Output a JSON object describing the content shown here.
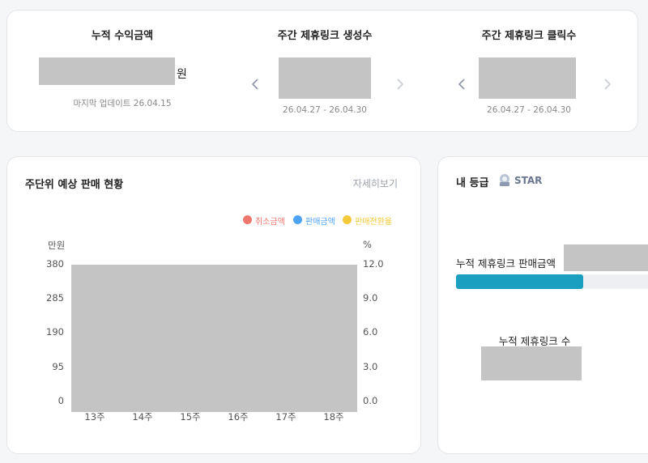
{
  "summary": [
    {
      "title": "누적 수익금액",
      "unit": "원",
      "note": "마지막 업데이트 26.04.15"
    },
    {
      "title": "주간 제휴링크 생성수",
      "period": "26.04.27 - 26.04.30"
    },
    {
      "title": "주간 제휴링크 클릭수",
      "period": "26.04.27 - 26.04.30"
    }
  ],
  "sales_chart": {
    "title": "주단위 예상 판매 현황",
    "link": "자세히보기",
    "legend": [
      "취소금액",
      "판매금액",
      "판매전환율"
    ],
    "left_axis_label": "만원",
    "right_axis_label": "%",
    "left_ticks": [
      "380",
      "285",
      "190",
      "95",
      "0"
    ],
    "right_ticks": [
      "12.0",
      "9.0",
      "6.0",
      "3.0",
      "0.0"
    ],
    "categories": [
      "13주",
      "14주",
      "15주",
      "16주",
      "17주",
      "18주"
    ]
  },
  "grade": {
    "title": "내 등급",
    "level": "STAR",
    "sales_label": "누적 제휴링크 판매금액",
    "count_label": "누적 제휴링크 수"
  }
}
